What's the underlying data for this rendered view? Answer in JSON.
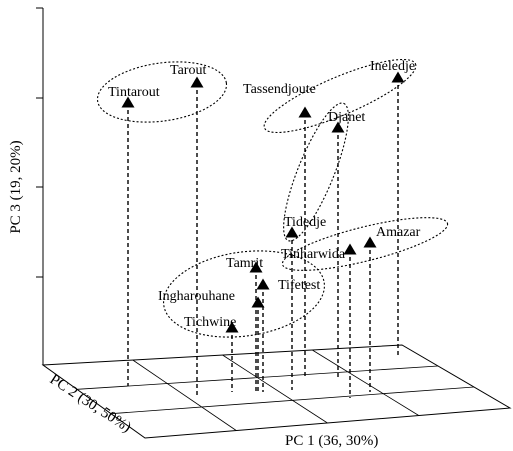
{
  "chart_data": {
    "type": "scatter",
    "projection": "3d",
    "axes": {
      "x": {
        "label": "PC 1 (36, 30%)"
      },
      "y": {
        "label": "PC 2 (30, 50%)"
      },
      "z": {
        "label": "PC 3 (19, 20%)"
      }
    },
    "marker": "filled-triangle",
    "drop_lines": "dashed",
    "points": [
      {
        "label": "Tintarout"
      },
      {
        "label": "Tarout"
      },
      {
        "label": "Tassendjoute"
      },
      {
        "label": "Ineledje"
      },
      {
        "label": "Djanet"
      },
      {
        "label": "Tidedje"
      },
      {
        "label": "Tinharwida"
      },
      {
        "label": "Amazar"
      },
      {
        "label": "Tamrit"
      },
      {
        "label": "Tifetest"
      },
      {
        "label": "Ingharouhane"
      },
      {
        "label": "Tichwine"
      }
    ],
    "groups": [
      {
        "members": [
          "Tintarout",
          "Tarout"
        ]
      },
      {
        "members": [
          "Tassendjoute",
          "Ineledje"
        ]
      },
      {
        "members": [
          "Djanet",
          "Tidedje"
        ]
      },
      {
        "members": [
          "Tinharwida",
          "Amazar"
        ]
      },
      {
        "members": [
          "Tamrit",
          "Tifetest",
          "Ingharouhane",
          "Tichwine"
        ]
      }
    ]
  }
}
